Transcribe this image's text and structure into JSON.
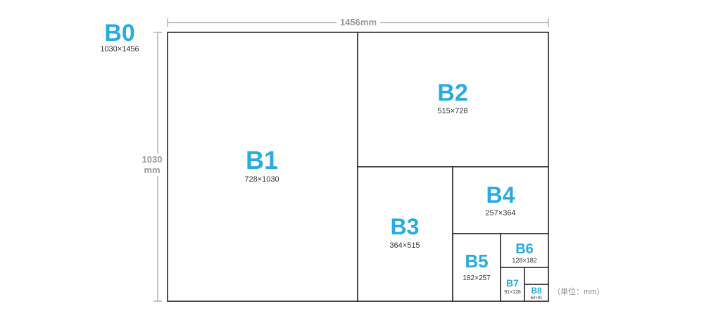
{
  "b0": {
    "label": "B0",
    "size": "1030×1456"
  },
  "dims": {
    "width": "1456mm",
    "height_line1": "1030",
    "height_line2": "mm"
  },
  "sheets": [
    {
      "label": "B1",
      "size": "728×1030"
    },
    {
      "label": "B2",
      "size": "515×728"
    },
    {
      "label": "B3",
      "size": "364×515"
    },
    {
      "label": "B4",
      "size": "257×364"
    },
    {
      "label": "B5",
      "size": "182×257"
    },
    {
      "label": "B6",
      "size": "128×182"
    },
    {
      "label": "B7",
      "size": "91×128"
    },
    {
      "label": "B8",
      "size": "64×91"
    }
  ],
  "unit_note": "（単位：mm）",
  "colors": {
    "accent": "#29abe2",
    "border": "#333333",
    "dimension": "#999999"
  }
}
